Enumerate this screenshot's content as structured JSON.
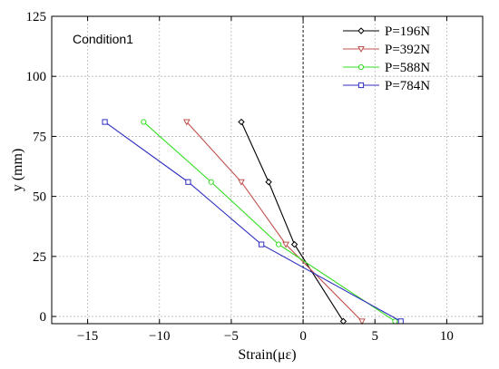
{
  "chart_data": {
    "type": "line",
    "annotation": "Condition1",
    "xlabel": "Strain(με)",
    "ylabel": "y (mm)",
    "xlim": [
      -17.5,
      12.5
    ],
    "ylim": [
      -3,
      125
    ],
    "xticks": [
      -15,
      -10,
      -5,
      0,
      5,
      10
    ],
    "yticks": [
      0,
      25,
      50,
      75,
      100,
      125
    ],
    "grid": true,
    "legend_position": "top-right",
    "zero_reference_line": "dashed vertical at x = 0",
    "series": [
      {
        "name": "P=196N",
        "color": "#000000",
        "marker": "diamond",
        "points": [
          [
            -4.3,
            81
          ],
          [
            -2.4,
            56
          ],
          [
            -0.6,
            30
          ],
          [
            2.8,
            -2
          ]
        ]
      },
      {
        "name": "P=392N",
        "color": "#c0504d",
        "marker": "triangle-down",
        "points": [
          [
            -8.1,
            81
          ],
          [
            -4.3,
            56
          ],
          [
            -1.2,
            30
          ],
          [
            4.1,
            -2
          ]
        ]
      },
      {
        "name": "P=588N",
        "color": "#33dd22",
        "marker": "circle",
        "points": [
          [
            -11.1,
            81
          ],
          [
            -6.4,
            56
          ],
          [
            -1.7,
            30
          ],
          [
            6.4,
            -2
          ]
        ]
      },
      {
        "name": "P=784N",
        "color": "#2f2fbf",
        "marker": "square",
        "points": [
          [
            -13.8,
            81
          ],
          [
            -8.0,
            56
          ],
          [
            -2.9,
            30
          ],
          [
            6.8,
            -2
          ]
        ]
      }
    ]
  }
}
